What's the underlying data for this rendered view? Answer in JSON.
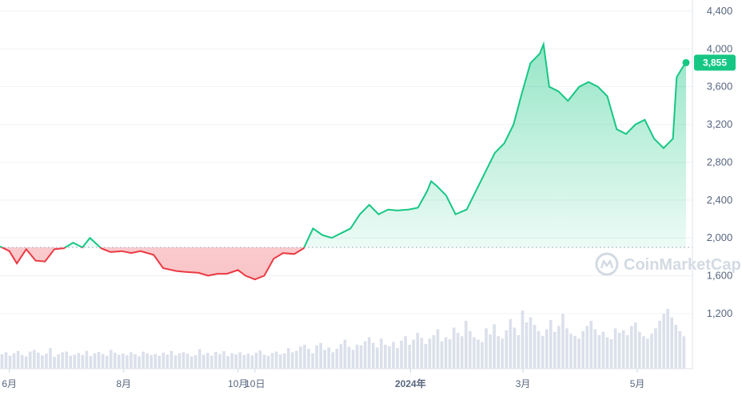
{
  "chart_data": {
    "type": "line",
    "y_ticks": [
      "4,400",
      "4,000",
      "3,600",
      "3,200",
      "2,800",
      "2,400",
      "2,000",
      "1,600",
      "1,200"
    ],
    "y_tick_values": [
      4400,
      4000,
      3600,
      3200,
      2800,
      2400,
      2000,
      1600,
      1200
    ],
    "ylim": [
      650,
      4450
    ],
    "x_ticks": [
      "6月",
      "8月",
      "10月",
      "10日",
      "2024年",
      "3月",
      "5月"
    ],
    "x_tick_dates": [
      "2023-06-01",
      "2023-08-01",
      "2023-10-01",
      "2023-10-10",
      "2024-01-01",
      "2024-03-01",
      "2024-05-01"
    ],
    "x_tick_bold": [
      false,
      false,
      false,
      false,
      true,
      false,
      false
    ],
    "xlim": [
      "2023-05-27",
      "2024-05-27"
    ],
    "baseline": 1900,
    "current_price_label": "3,855",
    "current_price": 3855,
    "up_color": "#16c784",
    "down_color": "#ea3943",
    "watermark": "CoinMarketCap",
    "series": [
      {
        "x": [
          "2023-05-27",
          "2023-06-01",
          "2023-06-05",
          "2023-06-10",
          "2023-06-15",
          "2023-06-20",
          "2023-06-25",
          "2023-06-30",
          "2023-07-05",
          "2023-07-10",
          "2023-07-14",
          "2023-07-20",
          "2023-07-25",
          "2023-07-31",
          "2023-08-05",
          "2023-08-10",
          "2023-08-17",
          "2023-08-22",
          "2023-08-29",
          "2023-09-03",
          "2023-09-10",
          "2023-09-15",
          "2023-09-20",
          "2023-09-25",
          "2023-10-01",
          "2023-10-05",
          "2023-10-10",
          "2023-10-15",
          "2023-10-20",
          "2023-10-25",
          "2023-10-31",
          "2023-11-05",
          "2023-11-10",
          "2023-11-15",
          "2023-11-20",
          "2023-11-25",
          "2023-11-30",
          "2023-12-05",
          "2023-12-10",
          "2023-12-15",
          "2023-12-20",
          "2023-12-25",
          "2023-12-31",
          "2024-01-05",
          "2024-01-10",
          "2024-01-12",
          "2024-01-15",
          "2024-01-20",
          "2024-01-25",
          "2024-01-31",
          "2024-02-05",
          "2024-02-10",
          "2024-02-15",
          "2024-02-20",
          "2024-02-25",
          "2024-02-29",
          "2024-03-05",
          "2024-03-10",
          "2024-03-12",
          "2024-03-15",
          "2024-03-20",
          "2024-03-25",
          "2024-03-31",
          "2024-04-05",
          "2024-04-10",
          "2024-04-15",
          "2024-04-20",
          "2024-04-25",
          "2024-04-30",
          "2024-05-05",
          "2024-05-10",
          "2024-05-15",
          "2024-05-20",
          "2024-05-22",
          "2024-05-25",
          "2024-05-27"
        ],
        "y": [
          1910,
          1860,
          1730,
          1880,
          1760,
          1750,
          1880,
          1890,
          1950,
          1900,
          2000,
          1890,
          1850,
          1860,
          1840,
          1860,
          1820,
          1680,
          1650,
          1640,
          1630,
          1600,
          1620,
          1620,
          1660,
          1600,
          1560,
          1600,
          1780,
          1840,
          1830,
          1890,
          2100,
          2030,
          2000,
          2050,
          2100,
          2250,
          2350,
          2250,
          2300,
          2290,
          2300,
          2320,
          2500,
          2600,
          2550,
          2450,
          2250,
          2300,
          2500,
          2700,
          2900,
          3000,
          3200,
          3500,
          3850,
          3950,
          4050,
          3600,
          3550,
          3450,
          3600,
          3650,
          3600,
          3500,
          3150,
          3100,
          3200,
          3250,
          3050,
          2950,
          3050,
          3700,
          3800,
          3855
        ]
      }
    ],
    "volume_series": [
      42,
      48,
      38,
      45,
      52,
      40,
      36,
      50,
      55,
      47,
      39,
      44,
      60,
      35,
      42,
      48,
      50,
      38,
      41,
      46,
      40,
      52,
      37,
      45,
      49,
      43,
      38,
      55,
      47,
      41,
      44,
      39,
      48,
      42,
      36,
      50,
      45,
      40,
      43,
      38,
      47,
      41,
      52,
      39,
      45,
      48,
      44,
      36,
      40,
      57,
      41,
      46,
      38,
      49,
      43,
      51,
      37,
      45,
      42,
      48,
      40,
      44,
      39,
      47,
      53,
      41,
      38,
      46,
      50,
      42,
      45,
      60,
      48,
      52,
      65,
      70,
      58,
      45,
      68,
      75,
      55,
      62,
      48,
      58,
      72,
      85,
      64,
      55,
      70,
      68,
      80,
      92,
      75,
      62,
      88,
      70,
      66,
      78,
      60,
      82,
      95,
      70,
      85,
      105,
      90,
      72,
      88,
      98,
      115,
      80,
      92,
      86,
      120,
      105,
      95,
      140,
      110,
      92,
      85,
      78,
      118,
      100,
      130,
      95,
      88,
      112,
      145,
      120,
      98,
      170,
      135,
      150,
      128,
      110,
      96,
      115,
      142,
      108,
      125,
      160,
      118,
      102,
      96,
      88,
      110,
      125,
      140,
      115,
      98,
      108,
      92,
      86,
      118,
      105,
      112,
      98,
      125,
      135,
      108,
      95,
      88,
      102,
      118,
      140,
      160,
      175,
      150,
      128,
      110,
      95
    ]
  }
}
